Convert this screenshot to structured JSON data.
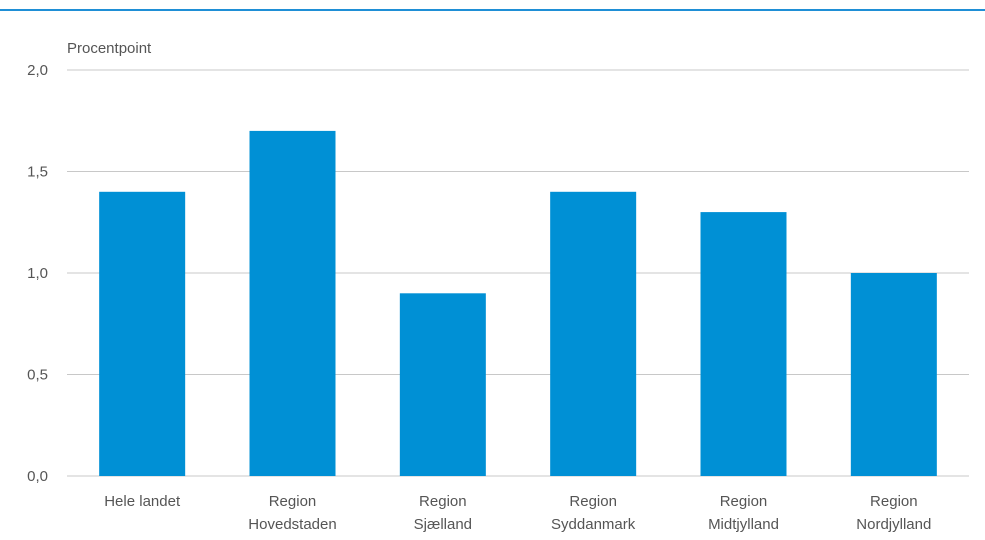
{
  "chart_data": {
    "type": "bar",
    "ylabel": "Procentpoint",
    "ylim": [
      0,
      2
    ],
    "yticks": [
      0,
      0.5,
      1,
      1.5,
      2
    ],
    "ytick_labels": [
      "0,0",
      "0,5",
      "1,0",
      "1,5",
      "2,0"
    ],
    "categories": [
      [
        "Hele landet"
      ],
      [
        "Region",
        "Hovedstaden"
      ],
      [
        "Region",
        "Sjælland"
      ],
      [
        "Region",
        "Syddanmark"
      ],
      [
        "Region",
        "Midtjylland"
      ],
      [
        "Region",
        "Nordjylland"
      ]
    ],
    "values": [
      1.4,
      1.7,
      0.9,
      1.4,
      1.3,
      1.0
    ],
    "grid": true,
    "colors": {
      "bar": "#0090d5",
      "grid": "#c8c8c8",
      "rule": "#1f8fd6"
    }
  }
}
